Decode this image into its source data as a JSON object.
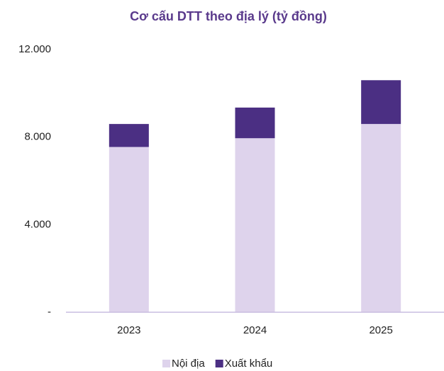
{
  "chart_data": {
    "type": "bar",
    "stacked": true,
    "title": "Cơ cấu DTT theo địa lý (tỷ đồng)",
    "categories": [
      "2023",
      "2024",
      "2025"
    ],
    "series": [
      {
        "name": "Nội địa",
        "color": "#ded3ec",
        "values": [
          7550,
          7950,
          8600
        ]
      },
      {
        "name": "Xuất khẩu",
        "color": "#4b2f83",
        "values": [
          1050,
          1400,
          2000
        ]
      }
    ],
    "ylim": [
      0,
      12000
    ],
    "yticks": [
      {
        "value": 0,
        "label": "-"
      },
      {
        "value": 4000,
        "label": "4.000"
      },
      {
        "value": 8000,
        "label": "8.000"
      },
      {
        "value": 12000,
        "label": "12.000"
      }
    ],
    "grid": false,
    "legend": "bottom"
  }
}
